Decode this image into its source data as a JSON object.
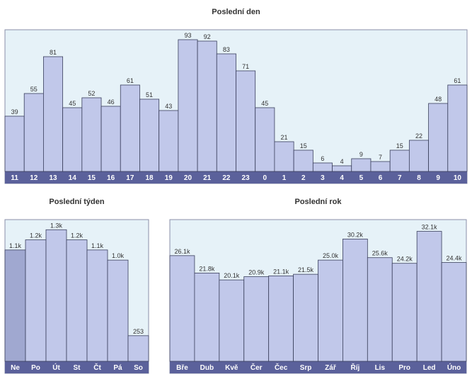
{
  "colors": {
    "plot_bg": "#e6f2f8",
    "bar": "#c1c8ea",
    "bar_highlight": "#a0a8d0",
    "bar_stroke": "#3a3f5c",
    "axis_band": "#5b619b",
    "frame": "#8a8fa8"
  },
  "chart_data": [
    {
      "type": "bar",
      "title": "Poslední den",
      "categories": [
        "11",
        "12",
        "13",
        "14",
        "15",
        "16",
        "17",
        "18",
        "19",
        "20",
        "21",
        "22",
        "23",
        "0",
        "1",
        "2",
        "3",
        "4",
        "5",
        "6",
        "7",
        "8",
        "9",
        "10"
      ],
      "values": [
        39,
        55,
        81,
        45,
        52,
        46,
        61,
        51,
        43,
        93,
        92,
        83,
        71,
        45,
        21,
        15,
        6,
        4,
        9,
        7,
        15,
        22,
        48,
        61
      ],
      "value_labels": [
        "39",
        "55",
        "81",
        "45",
        "52",
        "46",
        "61",
        "51",
        "43",
        "93",
        "92",
        "83",
        "71",
        "45",
        "21",
        "15",
        "6",
        "4",
        "9",
        "7",
        "15",
        "22",
        "48",
        "61"
      ],
      "ylim": [
        0,
        100
      ],
      "highlight_index": -1,
      "grid": false
    },
    {
      "type": "bar",
      "title": "Poslední týden",
      "categories": [
        "Ne",
        "Po",
        "Út",
        "St",
        "Čt",
        "Pá",
        "So"
      ],
      "values": [
        1100,
        1200,
        1300,
        1200,
        1100,
        1000,
        253
      ],
      "value_labels": [
        "1.1k",
        "1.2k",
        "1.3k",
        "1.2k",
        "1.1k",
        "1.0k",
        "253"
      ],
      "ylim": [
        0,
        1400
      ],
      "highlight_index": 0,
      "grid": false
    },
    {
      "type": "bar",
      "title": "Poslední rok",
      "categories": [
        "Bře",
        "Dub",
        "Kvě",
        "Čer",
        "Čec",
        "Srp",
        "Zář",
        "Říj",
        "Lis",
        "Pro",
        "Led",
        "Úno"
      ],
      "values": [
        26100,
        21800,
        20100,
        20900,
        21100,
        21500,
        25000,
        30200,
        25600,
        24200,
        32100,
        24400
      ],
      "value_labels": [
        "26.1k",
        "21.8k",
        "20.1k",
        "20.9k",
        "21.1k",
        "21.5k",
        "25.0k",
        "30.2k",
        "25.6k",
        "24.2k",
        "32.1k",
        "24.4k"
      ],
      "ylim": [
        0,
        35000
      ],
      "highlight_index": -1,
      "grid": false
    }
  ]
}
